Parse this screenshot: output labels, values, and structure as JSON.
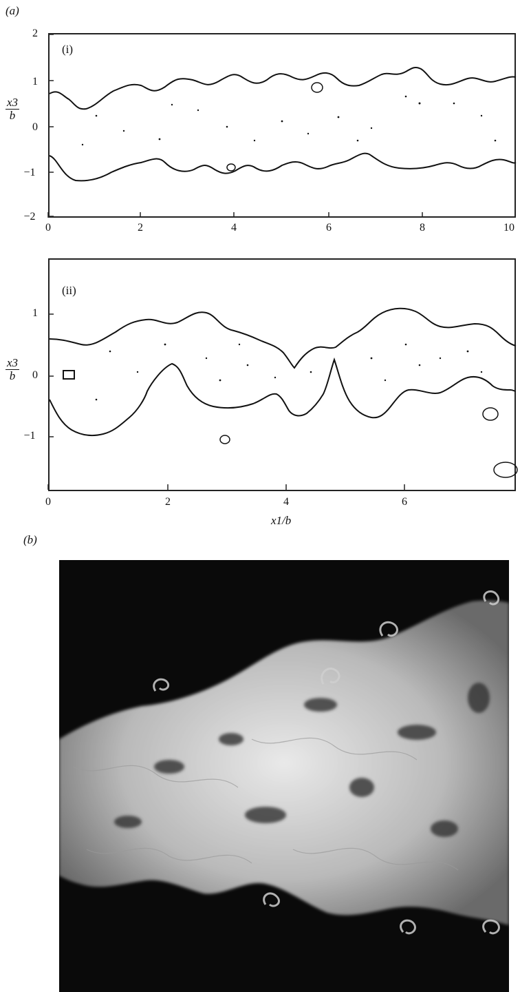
{
  "panel_a_label": "(a)",
  "panel_b_label": "(b)",
  "subpanel_i": {
    "tag": "(i)",
    "y_label_num": "x3",
    "y_label_den": "b",
    "y_ticks": [
      "2",
      "1",
      "0",
      "−1",
      "−2"
    ],
    "x_ticks": [
      "0",
      "2",
      "4",
      "6",
      "8",
      "10"
    ]
  },
  "subpanel_ii": {
    "tag": "(ii)",
    "y_label_num": "x3",
    "y_label_den": "b",
    "y_ticks": [
      "1",
      "0",
      "−1"
    ],
    "x_ticks": [
      "0",
      "2",
      "4",
      "6"
    ],
    "x_label": "x1/b"
  }
}
